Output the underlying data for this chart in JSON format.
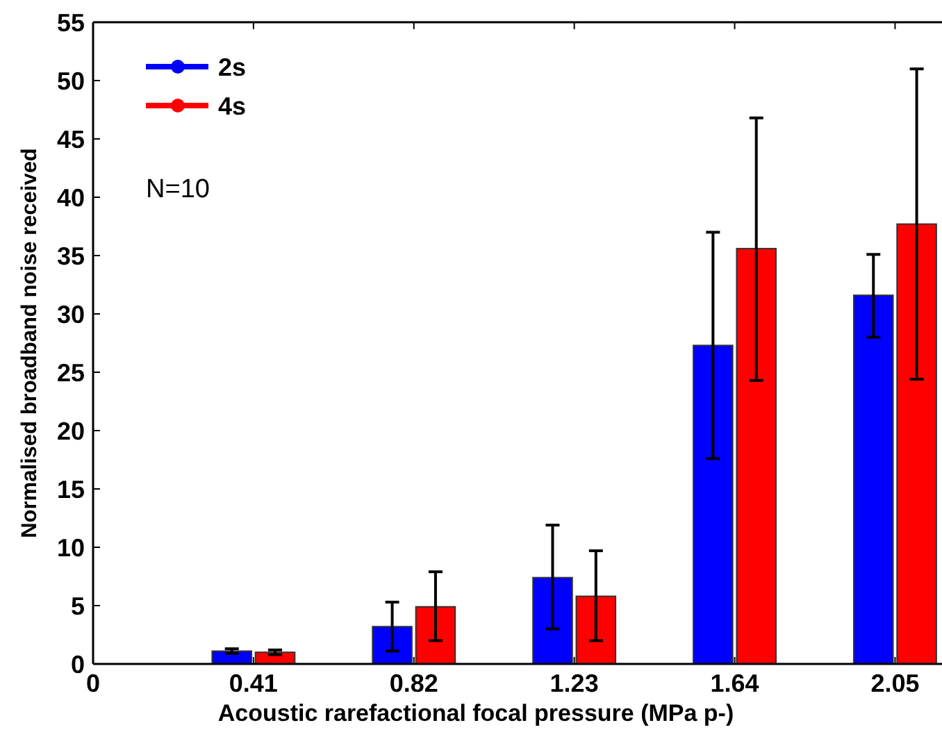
{
  "chart_data": {
    "type": "bar",
    "xlabel": "Acoustic rarefactional focal pressure (MPa p-)",
    "ylabel": "Normalised broadband noise received",
    "x": [
      0.41,
      0.82,
      1.23,
      1.64,
      2.05
    ],
    "series": [
      {
        "name": "2s",
        "color": "#0000ff",
        "values": [
          1.1,
          3.2,
          7.4,
          27.3,
          31.6
        ],
        "errors": [
          [
            0.9,
            1.3
          ],
          [
            1.1,
            5.3
          ],
          [
            3.0,
            11.9
          ],
          [
            17.6,
            37.0
          ],
          [
            28.0,
            35.1
          ]
        ]
      },
      {
        "name": "4s",
        "color": "#ff0000",
        "values": [
          1.0,
          4.9,
          5.8,
          35.6,
          37.7
        ],
        "errors": [
          [
            0.8,
            1.2
          ],
          [
            2.0,
            7.9
          ],
          [
            2.0,
            9.7
          ],
          [
            24.3,
            46.8
          ],
          [
            24.4,
            51.0
          ]
        ]
      }
    ],
    "xlim": [
      0,
      2.17
    ],
    "xticks": [
      0,
      0.41,
      0.82,
      1.23,
      1.64,
      2.05
    ],
    "ylim": [
      0,
      55
    ],
    "yticks": [
      0,
      5,
      10,
      15,
      20,
      25,
      30,
      35,
      40,
      45,
      50,
      55
    ],
    "legend": "top left",
    "grid": false,
    "annotations": [
      "N=10"
    ]
  }
}
